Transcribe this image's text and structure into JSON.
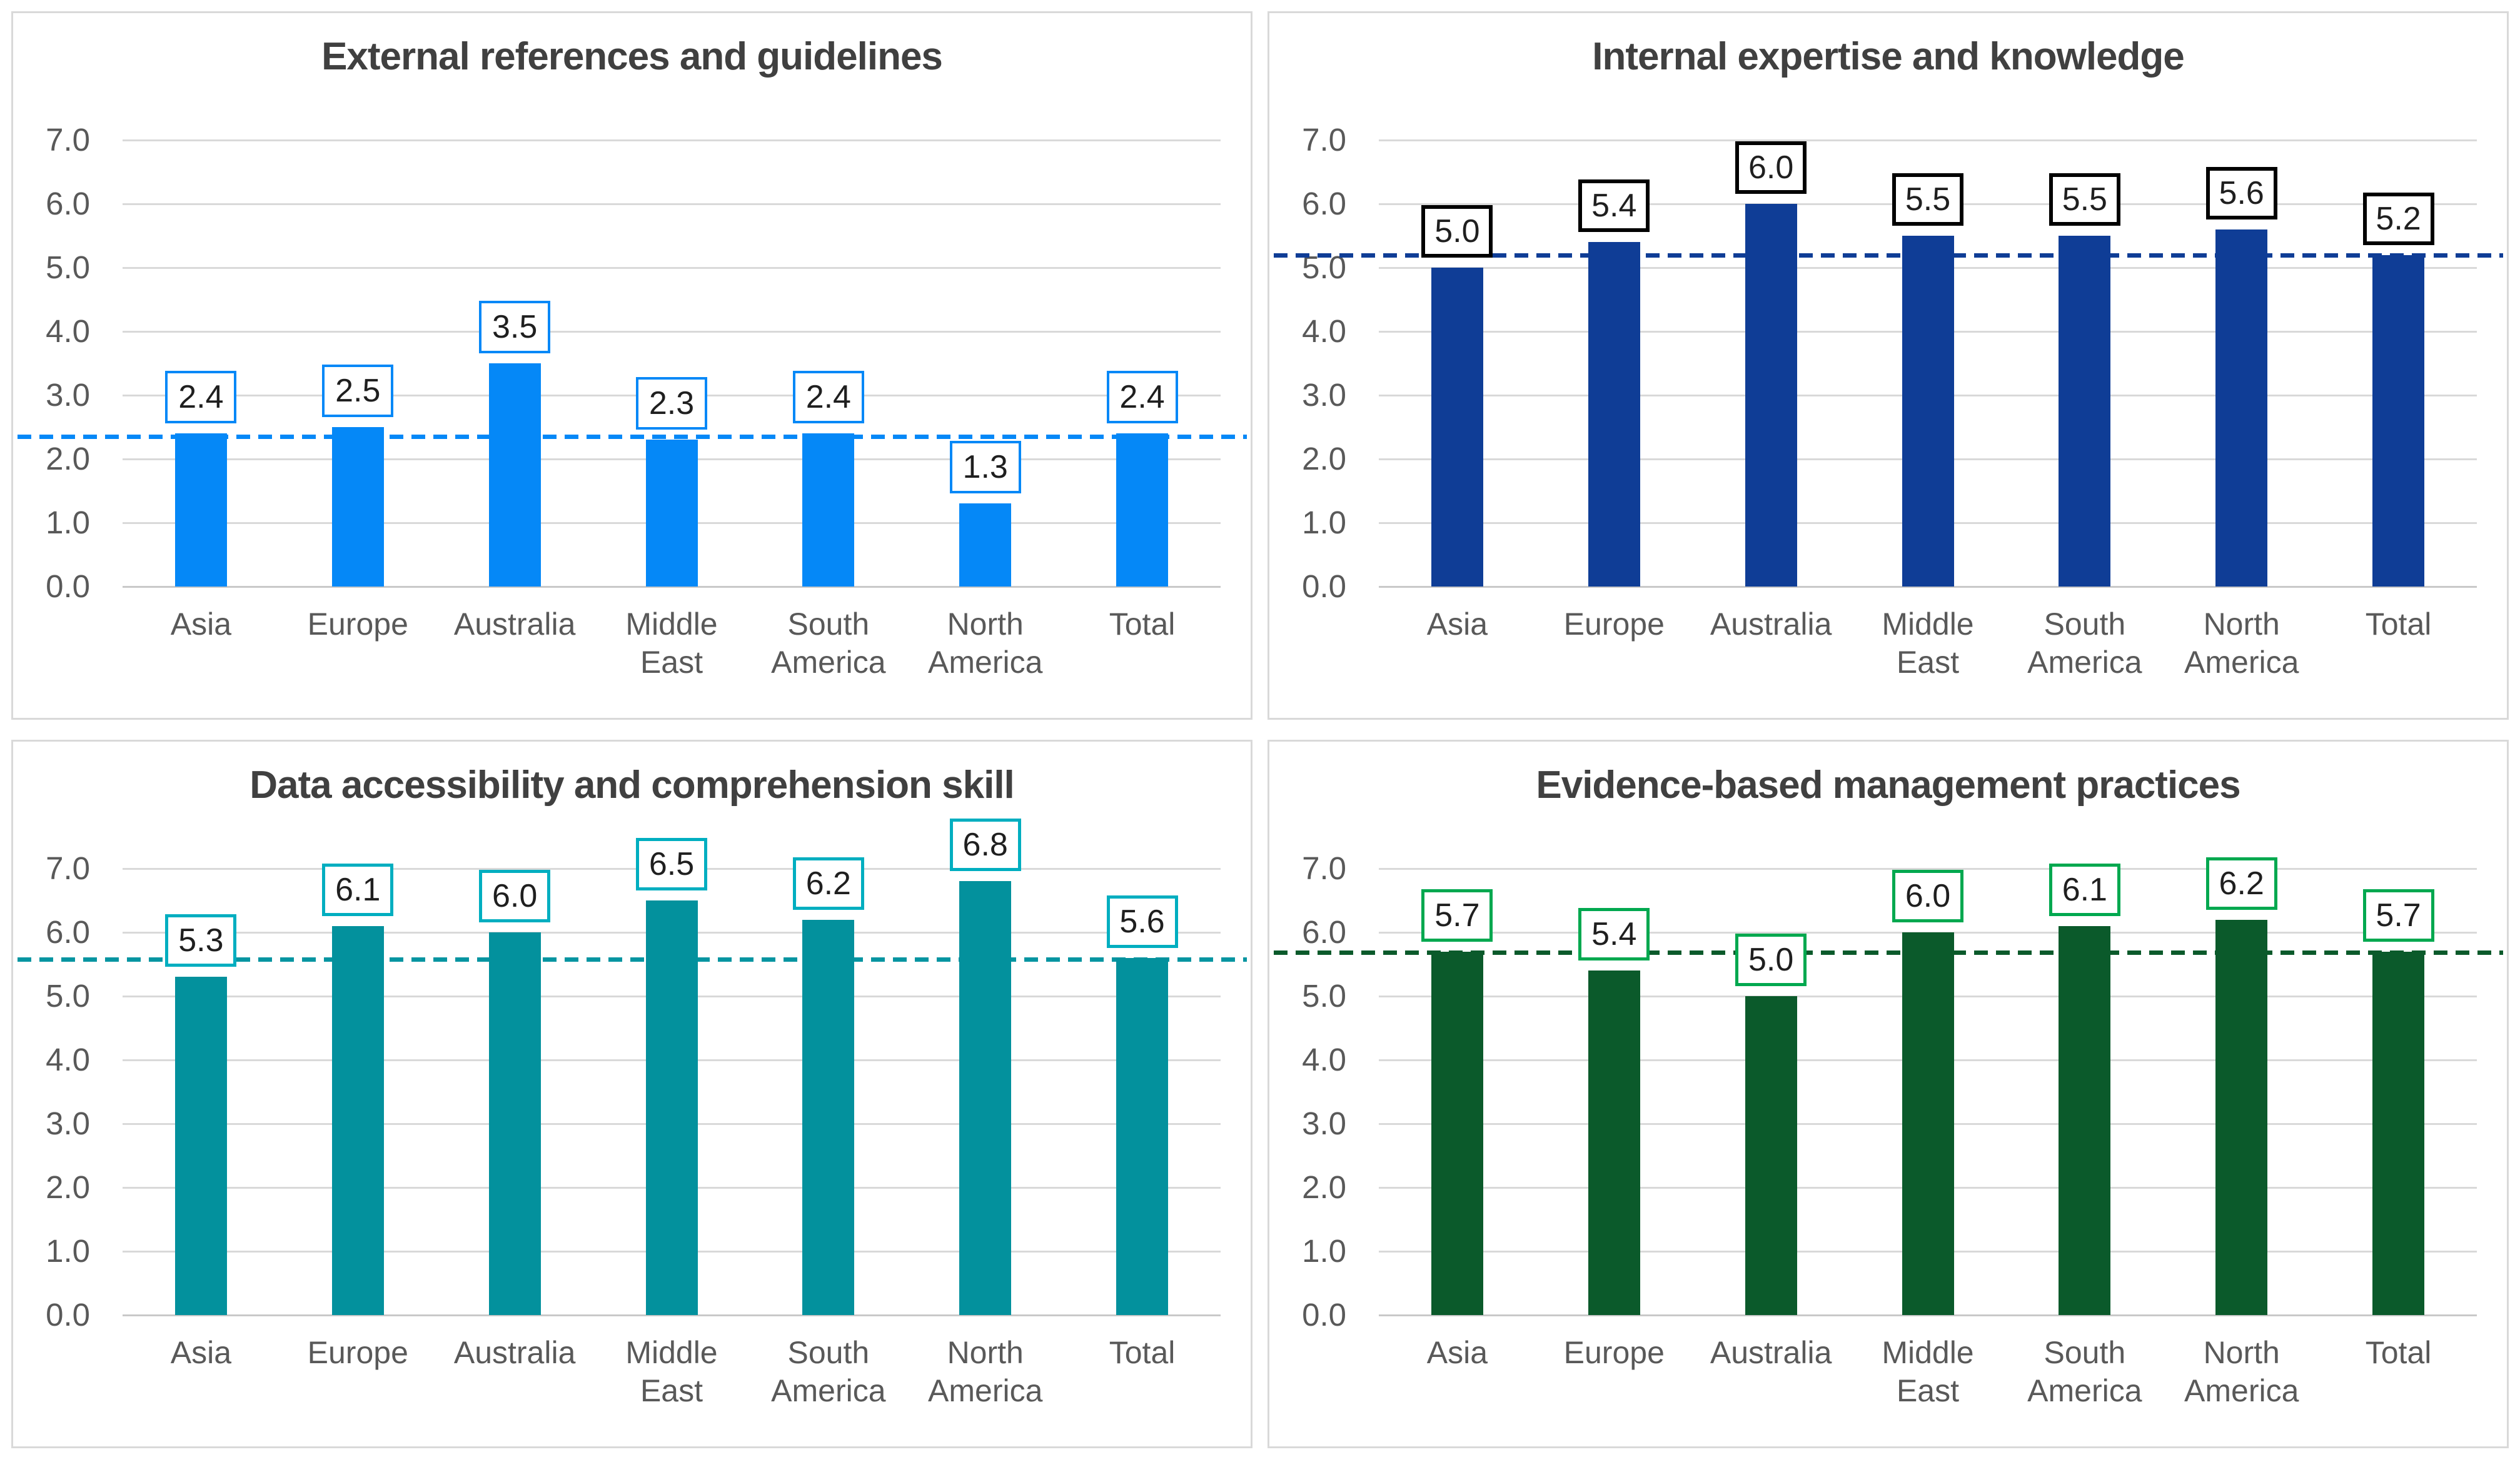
{
  "page": {
    "background": "#ffffff",
    "panel_border_color": "#d9d9d9",
    "gridline_color": "#d9d9d9",
    "title_color": "#404040",
    "axis_text_color": "#595959",
    "label_text_color": "#1f1f1f"
  },
  "chart_data": [
    {
      "type": "bar",
      "title": "External references and guidelines",
      "categories": [
        "Asia",
        "Europe",
        "Australia",
        "Middle East",
        "South America",
        "North America",
        "Total"
      ],
      "values": [
        2.4,
        2.5,
        3.5,
        2.3,
        2.4,
        1.3,
        2.4
      ],
      "labels": [
        "2.4",
        "2.5",
        "3.5",
        "2.3",
        "2.4",
        "1.3",
        "2.4"
      ],
      "average_line": 2.35,
      "colors": {
        "bar": "#0588f7",
        "label_border": "#0588f7",
        "dashed_line": "#0588f7"
      },
      "label_border_width": 4,
      "y_axis": {
        "min": 0,
        "max": 7,
        "step": 1,
        "tick_labels": [
          "0.0",
          "1.0",
          "2.0",
          "3.0",
          "4.0",
          "5.0",
          "6.0",
          "7.0"
        ]
      },
      "grid": true,
      "legend": false
    },
    {
      "type": "bar",
      "title": "Internal expertise and knowledge",
      "categories": [
        "Asia",
        "Europe",
        "Australia",
        "Middle East",
        "South America",
        "North America",
        "Total"
      ],
      "values": [
        5.0,
        5.4,
        6.0,
        5.5,
        5.5,
        5.6,
        5.2
      ],
      "labels": [
        "5.0",
        "5.4",
        "6.0",
        "5.5",
        "5.5",
        "5.6",
        "5.2"
      ],
      "average_line": 5.19,
      "colors": {
        "bar": "#0f3d96",
        "label_border": "#000000",
        "dashed_line": "#0f3d96"
      },
      "label_border_width": 6,
      "y_axis": {
        "min": 0,
        "max": 7,
        "step": 1,
        "tick_labels": [
          "0.0",
          "1.0",
          "2.0",
          "3.0",
          "4.0",
          "5.0",
          "6.0",
          "7.0"
        ]
      },
      "grid": true,
      "legend": false
    },
    {
      "type": "bar",
      "title": "Data accessibility and comprehension skill",
      "categories": [
        "Asia",
        "Europe",
        "Australia",
        "Middle East",
        "South America",
        "North America",
        "Total"
      ],
      "values": [
        5.3,
        6.1,
        6.0,
        6.5,
        6.2,
        6.8,
        5.6
      ],
      "labels": [
        "5.3",
        "6.1",
        "6.0",
        "6.5",
        "6.2",
        "6.8",
        "5.6"
      ],
      "average_line": 5.57,
      "colors": {
        "bar": "#03919d",
        "label_border": "#00aec0",
        "dashed_line": "#0595a1"
      },
      "label_border_width": 5,
      "y_axis": {
        "min": 0,
        "max": 7,
        "step": 1,
        "tick_labels": [
          "0.0",
          "1.0",
          "2.0",
          "3.0",
          "4.0",
          "5.0",
          "6.0",
          "7.0"
        ]
      },
      "grid": true,
      "legend": false
    },
    {
      "type": "bar",
      "title": "Evidence-based management practices",
      "categories": [
        "Asia",
        "Europe",
        "Australia",
        "Middle East",
        "South America",
        "North America",
        "Total"
      ],
      "values": [
        5.7,
        5.4,
        5.0,
        6.0,
        6.1,
        6.2,
        5.7
      ],
      "labels": [
        "5.7",
        "5.4",
        "5.0",
        "6.0",
        "6.1",
        "6.2",
        "5.7"
      ],
      "average_line": 5.68,
      "colors": {
        "bar": "#0b5a2b",
        "label_border": "#00a84f",
        "dashed_line": "#0b5a2b"
      },
      "label_border_width": 5,
      "y_axis": {
        "min": 0,
        "max": 7,
        "step": 1,
        "tick_labels": [
          "0.0",
          "1.0",
          "2.0",
          "3.0",
          "4.0",
          "5.0",
          "6.0",
          "7.0"
        ]
      },
      "grid": true,
      "legend": false
    }
  ]
}
